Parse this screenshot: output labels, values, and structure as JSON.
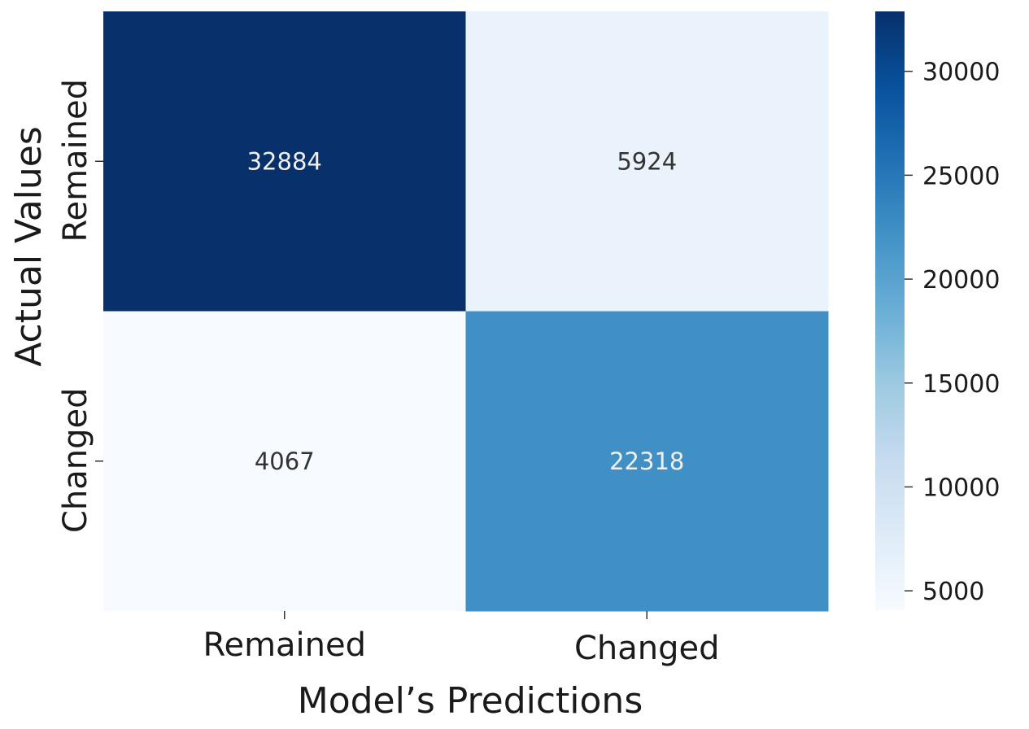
{
  "chart_data": {
    "type": "heatmap",
    "title": "",
    "xlabel": "Model’s Predictions",
    "ylabel": "Actual Values",
    "x_categories": [
      "Remained",
      "Changed"
    ],
    "y_categories": [
      "Remained",
      "Changed"
    ],
    "values": [
      [
        32884,
        5924
      ],
      [
        4067,
        22318
      ]
    ],
    "colormap": "Blues",
    "colorbar": {
      "vmin": 4067,
      "vmax": 32884,
      "ticks": [
        5000,
        10000,
        15000,
        20000,
        25000,
        30000
      ],
      "tick_labels": [
        "5000",
        "10000",
        "15000",
        "20000",
        "25000",
        "30000"
      ]
    },
    "colors": {
      "low": "#f7fbff",
      "high": "#08306b"
    }
  }
}
